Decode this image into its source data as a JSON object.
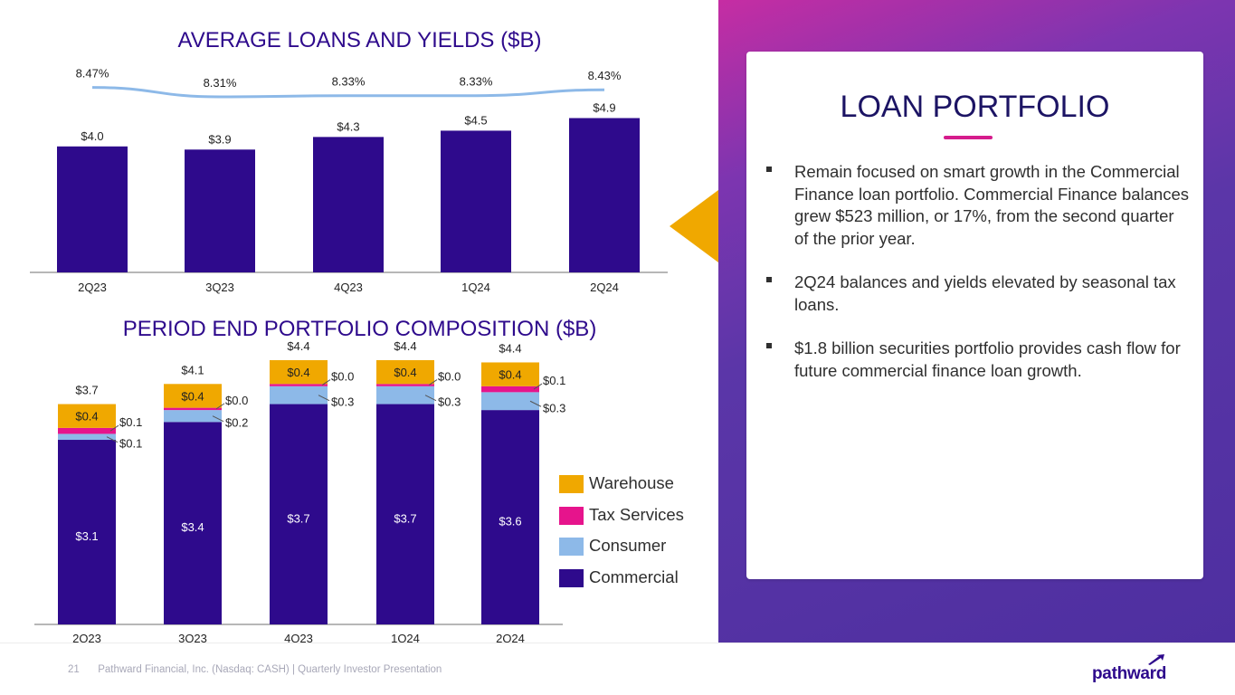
{
  "slide_number": "21",
  "footer": "Pathward Financial, Inc. (Nasdaq: CASH) | Quarterly Investor Presentation",
  "logo_text": "pathward",
  "colors": {
    "primary": "#2e0a8c",
    "warehouse": "#f0a800",
    "tax_services": "#e6148c",
    "consumer": "#8db9e8",
    "commercial": "#2e0a8c",
    "yield_line": "#8db9e8",
    "accent": "#d51c8c"
  },
  "panel": {
    "title": "LOAN PORTFOLIO",
    "bullets": [
      "Remain focused on smart growth in the Commercial Finance loan portfolio. Commercial Finance balances grew $523 million, or 17%, from the second quarter of the prior year.",
      "2Q24 balances and yields elevated by seasonal tax loans.",
      "$1.8 billion securities portfolio provides cash flow for future commercial finance loan growth."
    ]
  },
  "chart_data": [
    {
      "type": "bar",
      "title": "AVERAGE LOANS AND YIELDS ($B)",
      "categories": [
        "2Q23",
        "3Q23",
        "4Q23",
        "1Q24",
        "2Q24"
      ],
      "series": [
        {
          "values": [
            4.0,
            3.9,
            4.3,
            4.5,
            4.9
          ],
          "labels": [
            "$4.0",
            "$3.9",
            "$4.3",
            "$4.5",
            "$4.9"
          ]
        },
        {
          "type": "line",
          "values": [
            8.47,
            8.31,
            8.33,
            8.33,
            8.43
          ],
          "labels": [
            "8.47%",
            "8.31%",
            "8.33%",
            "8.33%",
            "8.43%"
          ]
        }
      ],
      "ylim": [
        0,
        4.9
      ]
    },
    {
      "type": "bar",
      "stacked": true,
      "title": "PERIOD END PORTFOLIO COMPOSITION ($B)",
      "categories": [
        "2Q23",
        "3Q23",
        "4Q23",
        "1Q24",
        "2Q24"
      ],
      "totals": [
        "$3.7",
        "$4.1",
        "$4.4",
        "$4.4",
        "$4.4"
      ],
      "series": [
        {
          "name": "Commercial",
          "values": [
            3.1,
            3.4,
            3.7,
            3.7,
            3.6
          ],
          "labels": [
            "$3.1",
            "$3.4",
            "$3.7",
            "$3.7",
            "$3.6"
          ]
        },
        {
          "name": "Consumer",
          "values": [
            0.1,
            0.2,
            0.3,
            0.3,
            0.3
          ],
          "labels": [
            "$0.1",
            "$0.2",
            "$0.3",
            "$0.3",
            "$0.3"
          ]
        },
        {
          "name": "Tax Services",
          "values": [
            0.1,
            0.0,
            0.0,
            0.0,
            0.1
          ],
          "labels": [
            "$0.1",
            "$0.0",
            "$0.0",
            "$0.0",
            "$0.1"
          ]
        },
        {
          "name": "Warehouse",
          "values": [
            0.4,
            0.4,
            0.4,
            0.4,
            0.4
          ],
          "labels": [
            "$0.4",
            "$0.4",
            "$0.4",
            "$0.4",
            "$0.4"
          ]
        }
      ],
      "legend": [
        "Warehouse",
        "Tax Services",
        "Consumer",
        "Commercial"
      ],
      "legend_position": "right",
      "ylim": [
        0,
        4.4
      ]
    }
  ]
}
